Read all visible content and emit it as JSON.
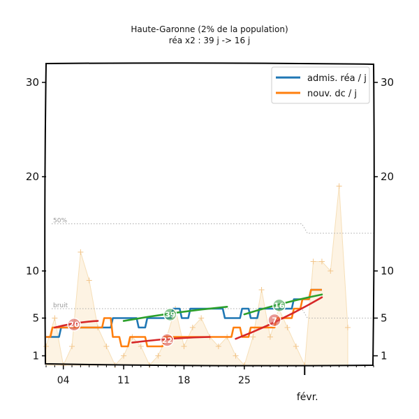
{
  "chart_data": {
    "type": "line",
    "title": "Haute-Garonne (2% de la population)",
    "subtitle": "réa x2 : 39 j -> 16 j",
    "x_axis": {
      "start_date": "2021-01-02",
      "end_date": "2021-02-09",
      "tick_labels": [
        "04",
        "11",
        "18",
        "25",
        "févr."
      ],
      "tick_dates": [
        "2021-01-04",
        "2021-01-11",
        "2021-01-18",
        "2021-01-25",
        "2021-02-01"
      ]
    },
    "y_axis": {
      "tick_labels": [
        "1",
        "5",
        "10",
        "20",
        "30"
      ],
      "tick_values": [
        1,
        5,
        10,
        20,
        30
      ],
      "ylim": [
        0,
        32
      ]
    },
    "legend": {
      "placement": "top-right",
      "entries": [
        {
          "label": "admis. réa / j",
          "color": "#1f77b4"
        },
        {
          "label": "nouv. dc / j",
          "color": "#ff7f0e"
        }
      ]
    },
    "reference_lines": [
      {
        "label": "50%",
        "before": 15,
        "after": 14
      },
      {
        "label": "bruit",
        "before": 6,
        "after": 5
      }
    ],
    "series": [
      {
        "name": "admis. réa / j",
        "color": "#1f77b4",
        "points": [
          {
            "date": "2021-01-02",
            "value": 3
          },
          {
            "date": "2021-01-03",
            "value": 3
          },
          {
            "date": "2021-01-04",
            "value": 4
          },
          {
            "date": "2021-01-05",
            "value": 4
          },
          {
            "date": "2021-01-06",
            "value": 4
          },
          {
            "date": "2021-01-07",
            "value": 4
          },
          {
            "date": "2021-01-08",
            "value": 4
          },
          {
            "date": "2021-01-09",
            "value": 4
          },
          {
            "date": "2021-01-10",
            "value": 5
          },
          {
            "date": "2021-01-11",
            "value": 5
          },
          {
            "date": "2021-01-12",
            "value": 5
          },
          {
            "date": "2021-01-13",
            "value": 4
          },
          {
            "date": "2021-01-14",
            "value": 5
          },
          {
            "date": "2021-01-15",
            "value": 5
          },
          {
            "date": "2021-01-16",
            "value": 5
          },
          {
            "date": "2021-01-17",
            "value": 6
          },
          {
            "date": "2021-01-18",
            "value": 5
          },
          {
            "date": "2021-01-19",
            "value": 6
          },
          {
            "date": "2021-01-20",
            "value": 6
          },
          {
            "date": "2021-01-21",
            "value": 6
          },
          {
            "date": "2021-01-22",
            "value": 6
          },
          {
            "date": "2021-01-23",
            "value": 5
          },
          {
            "date": "2021-01-24",
            "value": 5
          },
          {
            "date": "2021-01-25",
            "value": 6
          },
          {
            "date": "2021-01-26",
            "value": 5
          },
          {
            "date": "2021-01-27",
            "value": 6
          },
          {
            "date": "2021-01-28",
            "value": 6
          },
          {
            "date": "2021-01-29",
            "value": 6
          },
          {
            "date": "2021-01-30",
            "value": 6
          },
          {
            "date": "2021-01-31",
            "value": 7
          },
          {
            "date": "2021-02-01",
            "value": 7
          },
          {
            "date": "2021-02-02",
            "value": 8
          },
          {
            "date": "2021-02-03",
            "value": 8
          }
        ]
      },
      {
        "name": "nouv. dc / j",
        "color": "#ff7f0e",
        "points": [
          {
            "date": "2021-01-02",
            "value": 3
          },
          {
            "date": "2021-01-03",
            "value": 4
          },
          {
            "date": "2021-01-04",
            "value": 4
          },
          {
            "date": "2021-01-05",
            "value": 4
          },
          {
            "date": "2021-01-06",
            "value": 4
          },
          {
            "date": "2021-01-07",
            "value": 4
          },
          {
            "date": "2021-01-08",
            "value": 4
          },
          {
            "date": "2021-01-09",
            "value": 5
          },
          {
            "date": "2021-01-10",
            "value": 3
          },
          {
            "date": "2021-01-11",
            "value": 2
          },
          {
            "date": "2021-01-12",
            "value": 3
          },
          {
            "date": "2021-01-13",
            "value": 3
          },
          {
            "date": "2021-01-14",
            "value": 2
          },
          {
            "date": "2021-01-15",
            "value": 2
          },
          {
            "date": "2021-01-16",
            "value": 3
          },
          {
            "date": "2021-01-17",
            "value": 3
          },
          {
            "date": "2021-01-18",
            "value": 3
          },
          {
            "date": "2021-01-19",
            "value": 3
          },
          {
            "date": "2021-01-20",
            "value": 3
          },
          {
            "date": "2021-01-21",
            "value": 3
          },
          {
            "date": "2021-01-22",
            "value": 3
          },
          {
            "date": "2021-01-23",
            "value": 3
          },
          {
            "date": "2021-01-24",
            "value": 4
          },
          {
            "date": "2021-01-25",
            "value": 3
          },
          {
            "date": "2021-01-26",
            "value": 4
          },
          {
            "date": "2021-01-27",
            "value": 4
          },
          {
            "date": "2021-01-28",
            "value": 4
          },
          {
            "date": "2021-01-29",
            "value": 5
          },
          {
            "date": "2021-01-30",
            "value": 5
          },
          {
            "date": "2021-01-31",
            "value": 6
          },
          {
            "date": "2021-02-01",
            "value": 7
          },
          {
            "date": "2021-02-02",
            "value": 8
          },
          {
            "date": "2021-02-03",
            "value": 8
          }
        ]
      }
    ],
    "background_series": [
      {
        "name": "",
        "points": [
          {
            "date": "2021-01-02",
            "value": 2
          },
          {
            "date": "2021-01-03",
            "value": 5
          },
          {
            "date": "2021-01-04",
            "value": 0
          },
          {
            "date": "2021-01-05",
            "value": 2
          },
          {
            "date": "2021-01-06",
            "value": 12
          },
          {
            "date": "2021-01-07",
            "value": 9
          },
          {
            "date": "2021-01-08",
            "value": 4
          },
          {
            "date": "2021-01-09",
            "value": 2
          },
          {
            "date": "2021-01-10",
            "value": 0
          },
          {
            "date": "2021-01-11",
            "value": 1
          },
          {
            "date": "2021-01-12",
            "value": 3
          },
          {
            "date": "2021-01-13",
            "value": 2
          },
          {
            "date": "2021-01-14",
            "value": 0
          },
          {
            "date": "2021-01-15",
            "value": 1
          },
          {
            "date": "2021-01-16",
            "value": 3
          },
          {
            "date": "2021-01-17",
            "value": 6
          },
          {
            "date": "2021-01-18",
            "value": 2
          },
          {
            "date": "2021-01-19",
            "value": 4
          },
          {
            "date": "2021-01-20",
            "value": 5
          },
          {
            "date": "2021-01-21",
            "value": 3
          },
          {
            "date": "2021-01-22",
            "value": 2
          },
          {
            "date": "2021-01-23",
            "value": 3
          },
          {
            "date": "2021-01-24",
            "value": 1
          },
          {
            "date": "2021-01-25",
            "value": 0
          },
          {
            "date": "2021-01-26",
            "value": 3
          },
          {
            "date": "2021-01-27",
            "value": 8
          },
          {
            "date": "2021-01-28",
            "value": 3
          },
          {
            "date": "2021-01-29",
            "value": 6
          },
          {
            "date": "2021-01-30",
            "value": 4
          },
          {
            "date": "2021-01-31",
            "value": 2
          },
          {
            "date": "2021-02-01",
            "value": 0
          },
          {
            "date": "2021-02-02",
            "value": 11
          },
          {
            "date": "2021-02-03",
            "value": 11
          },
          {
            "date": "2021-02-04",
            "value": 10
          },
          {
            "date": "2021-02-05",
            "value": 19
          },
          {
            "date": "2021-02-06",
            "value": 4
          }
        ]
      }
    ],
    "trend_segments": [
      {
        "color": "#2ca02c",
        "badge_color": "#3fa14f",
        "label": "39",
        "from": "2021-01-11",
        "to": "2021-01-23",
        "from_value": 4.7,
        "to_value": 6.2
      },
      {
        "color": "#2ca02c",
        "badge_color": "#3fa14f",
        "label": "16",
        "from": "2021-01-25",
        "to": "2021-02-03",
        "from_value": 5.4,
        "to_value": 7.5
      },
      {
        "color": "#d62728",
        "badge_color": "#d9534f",
        "label": "20",
        "from": "2021-01-03",
        "to": "2021-01-08",
        "from_value": 4.0,
        "to_value": 4.7
      },
      {
        "color": "#d62728",
        "badge_color": "#d9534f",
        "label": "22",
        "from": "2021-01-12",
        "to": "2021-01-21",
        "from_value": 2.4,
        "to_value": 3.0
      },
      {
        "color": "#d62728",
        "badge_color": "#d9534f",
        "label": "7",
        "from": "2021-01-24",
        "to": "2021-02-03",
        "from_value": 2.8,
        "to_value": 7.2
      }
    ]
  }
}
